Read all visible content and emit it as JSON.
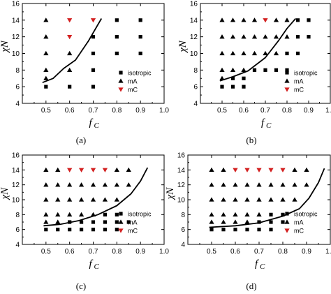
{
  "legend": {
    "isotropic": "isotropic",
    "mA": "mA",
    "mC": "mC"
  },
  "colors": {
    "isotropic": "#000000",
    "mA": "#000000",
    "mC": "#d32020",
    "boundary": "#000000"
  },
  "chart_data": [
    {
      "type": "scatter",
      "caption": "(a)",
      "xlabel": "f",
      "xlabel_sub": "C",
      "ylabel": "χN",
      "xlim": [
        0.4,
        1.0
      ],
      "ylim": [
        4,
        16
      ],
      "xticks": [
        "0.5",
        "0.6",
        "0.7",
        "0.8",
        "0.9",
        "1.0"
      ],
      "yticks": [
        "4",
        "6",
        "8",
        "10",
        "12",
        "14",
        "16"
      ],
      "legend_position": "lower-right",
      "series": [
        {
          "name": "isotropic",
          "marker": "square",
          "points": [
            [
              0.5,
              6
            ],
            [
              0.6,
              6
            ],
            [
              0.7,
              6
            ],
            [
              0.7,
              8
            ],
            [
              0.7,
              10
            ],
            [
              0.7,
              12
            ],
            [
              0.8,
              10
            ],
            [
              0.8,
              12
            ],
            [
              0.8,
              14
            ],
            [
              0.9,
              10
            ],
            [
              0.9,
              12
            ],
            [
              0.9,
              14
            ]
          ]
        },
        {
          "name": "mA",
          "marker": "triangle-up",
          "points": [
            [
              0.5,
              7
            ],
            [
              0.5,
              8
            ],
            [
              0.5,
              10
            ],
            [
              0.5,
              12
            ],
            [
              0.5,
              14
            ],
            [
              0.6,
              8
            ],
            [
              0.6,
              10
            ]
          ]
        },
        {
          "name": "mC",
          "marker": "triangle-down",
          "points": [
            [
              0.6,
              12
            ],
            [
              0.6,
              14
            ],
            [
              0.7,
              14
            ]
          ]
        }
      ],
      "boundary": [
        [
          0.485,
          6.5
        ],
        [
          0.53,
          7.0
        ],
        [
          0.575,
          8.2
        ],
        [
          0.625,
          9.2
        ],
        [
          0.68,
          11.5
        ],
        [
          0.735,
          14.2
        ]
      ]
    },
    {
      "type": "scatter",
      "caption": "(b)",
      "xlabel": "f",
      "xlabel_sub": "C",
      "ylabel": "χN",
      "xlim": [
        0.4,
        1.0
      ],
      "ylim": [
        4,
        16
      ],
      "xticks": [
        "0.5",
        "0.6",
        "0.7",
        "0.8",
        "0.9",
        "1.0"
      ],
      "yticks": [
        "4",
        "6",
        "8",
        "10",
        "12",
        "14",
        "16"
      ],
      "legend_position": "lower-right",
      "series": [
        {
          "name": "isotropic",
          "marker": "square",
          "points": [
            [
              0.5,
              6
            ],
            [
              0.55,
              6
            ],
            [
              0.6,
              6
            ],
            [
              0.55,
              7
            ],
            [
              0.6,
              7
            ],
            [
              0.65,
              8
            ],
            [
              0.7,
              8
            ],
            [
              0.75,
              8
            ],
            [
              0.8,
              8
            ],
            [
              0.8,
              10
            ],
            [
              0.85,
              10
            ],
            [
              0.85,
              12
            ],
            [
              0.9,
              12
            ],
            [
              0.85,
              14
            ],
            [
              0.9,
              14
            ]
          ]
        },
        {
          "name": "mA",
          "marker": "triangle-up",
          "points": [
            [
              0.5,
              7
            ],
            [
              0.5,
              8
            ],
            [
              0.55,
              8
            ],
            [
              0.6,
              8
            ],
            [
              0.5,
              10
            ],
            [
              0.55,
              10
            ],
            [
              0.6,
              10
            ],
            [
              0.65,
              10
            ],
            [
              0.7,
              10
            ],
            [
              0.75,
              10
            ],
            [
              0.5,
              12
            ],
            [
              0.55,
              12
            ],
            [
              0.6,
              12
            ],
            [
              0.65,
              12
            ],
            [
              0.7,
              12
            ],
            [
              0.75,
              12
            ],
            [
              0.8,
              12
            ],
            [
              0.5,
              14
            ],
            [
              0.55,
              14
            ],
            [
              0.6,
              14
            ],
            [
              0.65,
              14
            ],
            [
              0.75,
              14
            ],
            [
              0.8,
              14
            ]
          ]
        },
        {
          "name": "mC",
          "marker": "triangle-down",
          "points": [
            [
              0.7,
              14
            ]
          ]
        }
      ],
      "boundary": [
        [
          0.49,
          6.7
        ],
        [
          0.55,
          7.2
        ],
        [
          0.62,
          7.9
        ],
        [
          0.7,
          9.5
        ],
        [
          0.76,
          11.5
        ],
        [
          0.8,
          13.0
        ],
        [
          0.84,
          14.2
        ]
      ]
    },
    {
      "type": "scatter",
      "caption": "(c)",
      "xlabel": "f",
      "xlabel_sub": "C",
      "ylabel": "χN",
      "xlim": [
        0.4,
        1.0
      ],
      "ylim": [
        4,
        16
      ],
      "xticks": [
        "0.5",
        "0.6",
        "0.7",
        "0.8",
        "0.9",
        "1.0"
      ],
      "yticks": [
        "4",
        "6",
        "8",
        "10",
        "12",
        "14",
        "16"
      ],
      "legend_position": "lower-right",
      "series": [
        {
          "name": "isotropic",
          "marker": "square",
          "points": [
            [
              0.5,
              6
            ],
            [
              0.55,
              6
            ],
            [
              0.6,
              6
            ],
            [
              0.65,
              6
            ],
            [
              0.7,
              6
            ],
            [
              0.75,
              6
            ],
            [
              0.8,
              6
            ],
            [
              0.6,
              7
            ],
            [
              0.65,
              7
            ],
            [
              0.7,
              7
            ],
            [
              0.75,
              7
            ],
            [
              0.8,
              7
            ],
            [
              0.85,
              7
            ],
            [
              0.75,
              8
            ],
            [
              0.8,
              8
            ]
          ]
        },
        {
          "name": "mA",
          "marker": "triangle-up",
          "points": [
            [
              0.5,
              7
            ],
            [
              0.55,
              7
            ],
            [
              0.5,
              8
            ],
            [
              0.55,
              8
            ],
            [
              0.6,
              8
            ],
            [
              0.65,
              8
            ],
            [
              0.7,
              8
            ],
            [
              0.5,
              10
            ],
            [
              0.55,
              10
            ],
            [
              0.6,
              10
            ],
            [
              0.65,
              10
            ],
            [
              0.7,
              10
            ],
            [
              0.75,
              10
            ],
            [
              0.8,
              10
            ],
            [
              0.5,
              12
            ],
            [
              0.55,
              12
            ],
            [
              0.6,
              12
            ],
            [
              0.65,
              12
            ],
            [
              0.7,
              12
            ],
            [
              0.75,
              12
            ],
            [
              0.8,
              12
            ],
            [
              0.85,
              12
            ],
            [
              0.5,
              14
            ],
            [
              0.55,
              14
            ],
            [
              0.8,
              14
            ],
            [
              0.85,
              14
            ]
          ]
        },
        {
          "name": "mC",
          "marker": "triangle-down",
          "points": [
            [
              0.6,
              14
            ],
            [
              0.65,
              14
            ],
            [
              0.7,
              14
            ],
            [
              0.75,
              14
            ]
          ]
        }
      ],
      "boundary": [
        [
          0.49,
          6.5
        ],
        [
          0.56,
          6.7
        ],
        [
          0.64,
          7.2
        ],
        [
          0.72,
          8.0
        ],
        [
          0.8,
          9.2
        ],
        [
          0.86,
          10.8
        ],
        [
          0.9,
          12.5
        ],
        [
          0.93,
          14.3
        ]
      ]
    },
    {
      "type": "scatter",
      "caption": "(d)",
      "xlabel": "f",
      "xlabel_sub": "C",
      "ylabel": "χN",
      "xlim": [
        0.4,
        1.0
      ],
      "ylim": [
        4,
        16
      ],
      "xticks": [
        "0.5",
        "0.6",
        "0.7",
        "0.8",
        "0.9",
        "1.0"
      ],
      "yticks": [
        "4",
        "6",
        "8",
        "10",
        "12",
        "14",
        "16"
      ],
      "legend_position": "lower-right",
      "series": [
        {
          "name": "isotropic",
          "marker": "square",
          "points": [
            [
              0.5,
              6
            ],
            [
              0.55,
              6
            ],
            [
              0.6,
              6
            ],
            [
              0.65,
              6
            ],
            [
              0.7,
              6
            ],
            [
              0.75,
              6
            ],
            [
              0.7,
              7
            ],
            [
              0.75,
              7
            ],
            [
              0.8,
              7
            ],
            [
              0.75,
              8
            ],
            [
              0.8,
              8
            ]
          ]
        },
        {
          "name": "mA",
          "marker": "triangle-up",
          "points": [
            [
              0.5,
              7
            ],
            [
              0.55,
              7
            ],
            [
              0.6,
              7
            ],
            [
              0.65,
              7
            ],
            [
              0.5,
              8
            ],
            [
              0.55,
              8
            ],
            [
              0.6,
              8
            ],
            [
              0.65,
              8
            ],
            [
              0.7,
              8
            ],
            [
              0.5,
              10
            ],
            [
              0.55,
              10
            ],
            [
              0.6,
              10
            ],
            [
              0.65,
              10
            ],
            [
              0.7,
              10
            ],
            [
              0.75,
              10
            ],
            [
              0.8,
              10
            ],
            [
              0.85,
              10
            ],
            [
              0.5,
              12
            ],
            [
              0.55,
              12
            ],
            [
              0.6,
              12
            ],
            [
              0.65,
              12
            ],
            [
              0.7,
              12
            ],
            [
              0.75,
              12
            ],
            [
              0.8,
              12
            ],
            [
              0.85,
              12
            ],
            [
              0.9,
              12
            ],
            [
              0.5,
              14
            ],
            [
              0.55,
              14
            ],
            [
              0.85,
              14
            ],
            [
              0.9,
              14
            ]
          ]
        },
        {
          "name": "mC",
          "marker": "triangle-down",
          "points": [
            [
              0.6,
              14
            ],
            [
              0.65,
              14
            ],
            [
              0.7,
              14
            ],
            [
              0.75,
              14
            ],
            [
              0.8,
              14
            ]
          ]
        }
      ],
      "boundary": [
        [
          0.49,
          6.3
        ],
        [
          0.6,
          6.5
        ],
        [
          0.7,
          6.9
        ],
        [
          0.8,
          7.8
        ],
        [
          0.87,
          8.8
        ],
        [
          0.91,
          10.2
        ],
        [
          0.95,
          12.3
        ],
        [
          0.975,
          14.2
        ]
      ]
    }
  ]
}
